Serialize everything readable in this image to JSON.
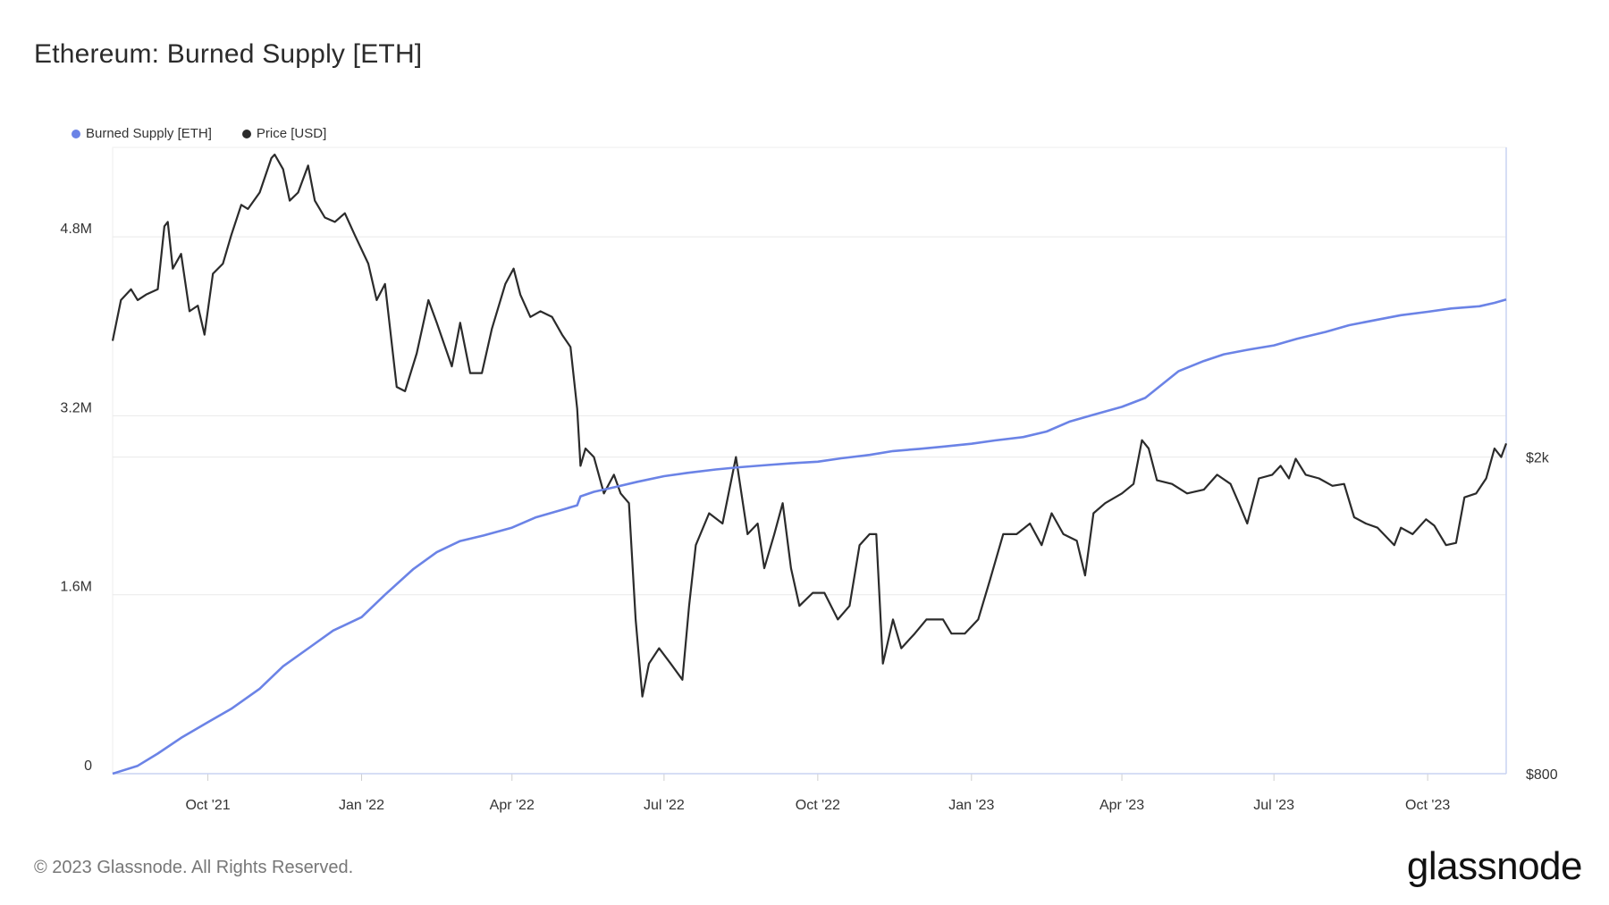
{
  "header": {
    "title": "Ethereum: Burned Supply [ETH]"
  },
  "footer": {
    "copyright": "© 2023 Glassnode. All Rights Reserved.",
    "logo": "glassnode"
  },
  "colors": {
    "burned": "#6b83e6",
    "price": "#2b2b2b",
    "grid": "#e9e9e9",
    "axis": "#c9d3f2"
  },
  "chart_data": {
    "type": "line",
    "title": "Ethereum: Burned Supply [ETH]",
    "legend_position": "top-left",
    "grid": true,
    "x_range": [
      "2021-08-05",
      "2023-11-17"
    ],
    "x_ticks": [
      {
        "date": "2021-10-01",
        "label": "Oct '21"
      },
      {
        "date": "2022-01-01",
        "label": "Jan '22"
      },
      {
        "date": "2022-04-01",
        "label": "Apr '22"
      },
      {
        "date": "2022-07-01",
        "label": "Jul '22"
      },
      {
        "date": "2022-10-01",
        "label": "Oct '22"
      },
      {
        "date": "2023-01-01",
        "label": "Jan '23"
      },
      {
        "date": "2023-04-01",
        "label": "Apr '23"
      },
      {
        "date": "2023-07-01",
        "label": "Jul '23"
      },
      {
        "date": "2023-10-01",
        "label": "Oct '23"
      }
    ],
    "y_left": {
      "min": 0,
      "max": 5600000,
      "ticks": [
        {
          "value": 0,
          "label": "0"
        },
        {
          "value": 1600000,
          "label": "1.6M"
        },
        {
          "value": 3200000,
          "label": "3.2M"
        },
        {
          "value": 4800000,
          "label": "4.8M"
        }
      ]
    },
    "y_right": {
      "scale": "log",
      "min": 800,
      "max": 4900,
      "ticks": [
        {
          "value": 800,
          "label": "$800"
        },
        {
          "value": 2000,
          "label": "$2k"
        }
      ]
    },
    "series": [
      {
        "name": "Burned Supply [ETH]",
        "axis": "left",
        "points": [
          [
            "2021-08-05",
            0
          ],
          [
            "2021-08-20",
            70000
          ],
          [
            "2021-09-01",
            180000
          ],
          [
            "2021-09-15",
            320000
          ],
          [
            "2021-10-01",
            460000
          ],
          [
            "2021-10-15",
            580000
          ],
          [
            "2021-11-01",
            760000
          ],
          [
            "2021-11-15",
            960000
          ],
          [
            "2021-12-01",
            1130000
          ],
          [
            "2021-12-15",
            1280000
          ],
          [
            "2022-01-01",
            1400000
          ],
          [
            "2022-01-15",
            1600000
          ],
          [
            "2022-02-01",
            1830000
          ],
          [
            "2022-02-15",
            1980000
          ],
          [
            "2022-03-01",
            2080000
          ],
          [
            "2022-03-15",
            2130000
          ],
          [
            "2022-04-01",
            2200000
          ],
          [
            "2022-04-15",
            2290000
          ],
          [
            "2022-05-01",
            2360000
          ],
          [
            "2022-05-10",
            2400000
          ],
          [
            "2022-05-12",
            2480000
          ],
          [
            "2022-05-20",
            2520000
          ],
          [
            "2022-06-01",
            2560000
          ],
          [
            "2022-06-15",
            2610000
          ],
          [
            "2022-07-01",
            2660000
          ],
          [
            "2022-07-15",
            2690000
          ],
          [
            "2022-08-01",
            2720000
          ],
          [
            "2022-08-15",
            2740000
          ],
          [
            "2022-09-01",
            2760000
          ],
          [
            "2022-09-15",
            2775000
          ],
          [
            "2022-10-01",
            2790000
          ],
          [
            "2022-10-15",
            2820000
          ],
          [
            "2022-11-01",
            2850000
          ],
          [
            "2022-11-15",
            2885000
          ],
          [
            "2022-12-01",
            2905000
          ],
          [
            "2022-12-15",
            2925000
          ],
          [
            "2023-01-01",
            2950000
          ],
          [
            "2023-01-15",
            2980000
          ],
          [
            "2023-02-01",
            3010000
          ],
          [
            "2023-02-15",
            3060000
          ],
          [
            "2023-03-01",
            3150000
          ],
          [
            "2023-03-15",
            3210000
          ],
          [
            "2023-04-01",
            3280000
          ],
          [
            "2023-04-15",
            3360000
          ],
          [
            "2023-04-25",
            3480000
          ],
          [
            "2023-05-05",
            3600000
          ],
          [
            "2023-05-20",
            3690000
          ],
          [
            "2023-06-01",
            3750000
          ],
          [
            "2023-06-15",
            3790000
          ],
          [
            "2023-07-01",
            3830000
          ],
          [
            "2023-07-15",
            3890000
          ],
          [
            "2023-08-01",
            3950000
          ],
          [
            "2023-08-15",
            4010000
          ],
          [
            "2023-09-01",
            4060000
          ],
          [
            "2023-09-15",
            4100000
          ],
          [
            "2023-10-01",
            4130000
          ],
          [
            "2023-10-15",
            4160000
          ],
          [
            "2023-11-01",
            4180000
          ],
          [
            "2023-11-10",
            4210000
          ],
          [
            "2023-11-17",
            4240000
          ]
        ]
      },
      {
        "name": "Price [USD]",
        "axis": "right",
        "points": [
          [
            "2021-08-05",
            2800
          ],
          [
            "2021-08-10",
            3150
          ],
          [
            "2021-08-16",
            3250
          ],
          [
            "2021-08-20",
            3150
          ],
          [
            "2021-08-25",
            3200
          ],
          [
            "2021-09-01",
            3250
          ],
          [
            "2021-09-05",
            3900
          ],
          [
            "2021-09-07",
            3950
          ],
          [
            "2021-09-10",
            3450
          ],
          [
            "2021-09-15",
            3600
          ],
          [
            "2021-09-20",
            3050
          ],
          [
            "2021-09-25",
            3100
          ],
          [
            "2021-09-29",
            2850
          ],
          [
            "2021-10-04",
            3400
          ],
          [
            "2021-10-10",
            3500
          ],
          [
            "2021-10-15",
            3800
          ],
          [
            "2021-10-21",
            4150
          ],
          [
            "2021-10-25",
            4100
          ],
          [
            "2021-11-01",
            4300
          ],
          [
            "2021-11-08",
            4750
          ],
          [
            "2021-11-10",
            4800
          ],
          [
            "2021-11-15",
            4600
          ],
          [
            "2021-11-19",
            4200
          ],
          [
            "2021-11-24",
            4300
          ],
          [
            "2021-11-30",
            4650
          ],
          [
            "2021-12-04",
            4200
          ],
          [
            "2021-12-10",
            4000
          ],
          [
            "2021-12-16",
            3950
          ],
          [
            "2021-12-22",
            4050
          ],
          [
            "2021-12-28",
            3800
          ],
          [
            "2022-01-05",
            3500
          ],
          [
            "2022-01-10",
            3150
          ],
          [
            "2022-01-15",
            3300
          ],
          [
            "2022-01-22",
            2450
          ],
          [
            "2022-01-27",
            2420
          ],
          [
            "2022-02-03",
            2700
          ],
          [
            "2022-02-10",
            3150
          ],
          [
            "2022-02-15",
            2950
          ],
          [
            "2022-02-24",
            2600
          ],
          [
            "2022-03-01",
            2950
          ],
          [
            "2022-03-07",
            2550
          ],
          [
            "2022-03-14",
            2550
          ],
          [
            "2022-03-20",
            2900
          ],
          [
            "2022-03-28",
            3300
          ],
          [
            "2022-04-02",
            3450
          ],
          [
            "2022-04-06",
            3200
          ],
          [
            "2022-04-12",
            3000
          ],
          [
            "2022-04-18",
            3050
          ],
          [
            "2022-04-25",
            3000
          ],
          [
            "2022-05-01",
            2850
          ],
          [
            "2022-05-06",
            2750
          ],
          [
            "2022-05-10",
            2300
          ],
          [
            "2022-05-12",
            1950
          ],
          [
            "2022-05-15",
            2050
          ],
          [
            "2022-05-20",
            2000
          ],
          [
            "2022-05-26",
            1800
          ],
          [
            "2022-06-01",
            1900
          ],
          [
            "2022-06-05",
            1800
          ],
          [
            "2022-06-10",
            1750
          ],
          [
            "2022-06-14",
            1250
          ],
          [
            "2022-06-18",
            1000
          ],
          [
            "2022-06-22",
            1100
          ],
          [
            "2022-06-28",
            1150
          ],
          [
            "2022-07-05",
            1100
          ],
          [
            "2022-07-12",
            1050
          ],
          [
            "2022-07-16",
            1300
          ],
          [
            "2022-07-20",
            1550
          ],
          [
            "2022-07-28",
            1700
          ],
          [
            "2022-08-05",
            1650
          ],
          [
            "2022-08-13",
            2000
          ],
          [
            "2022-08-20",
            1600
          ],
          [
            "2022-08-26",
            1650
          ],
          [
            "2022-08-30",
            1450
          ],
          [
            "2022-09-05",
            1600
          ],
          [
            "2022-09-10",
            1750
          ],
          [
            "2022-09-15",
            1450
          ],
          [
            "2022-09-20",
            1300
          ],
          [
            "2022-09-28",
            1350
          ],
          [
            "2022-10-05",
            1350
          ],
          [
            "2022-10-13",
            1250
          ],
          [
            "2022-10-20",
            1300
          ],
          [
            "2022-10-26",
            1550
          ],
          [
            "2022-11-01",
            1600
          ],
          [
            "2022-11-05",
            1600
          ],
          [
            "2022-11-09",
            1100
          ],
          [
            "2022-11-15",
            1250
          ],
          [
            "2022-11-20",
            1150
          ],
          [
            "2022-11-28",
            1200
          ],
          [
            "2022-12-05",
            1250
          ],
          [
            "2022-12-15",
            1250
          ],
          [
            "2022-12-20",
            1200
          ],
          [
            "2022-12-28",
            1200
          ],
          [
            "2023-01-05",
            1250
          ],
          [
            "2023-01-12",
            1400
          ],
          [
            "2023-01-20",
            1600
          ],
          [
            "2023-01-28",
            1600
          ],
          [
            "2023-02-05",
            1650
          ],
          [
            "2023-02-12",
            1550
          ],
          [
            "2023-02-18",
            1700
          ],
          [
            "2023-02-25",
            1600
          ],
          [
            "2023-03-05",
            1570
          ],
          [
            "2023-03-10",
            1420
          ],
          [
            "2023-03-15",
            1700
          ],
          [
            "2023-03-22",
            1750
          ],
          [
            "2023-04-01",
            1800
          ],
          [
            "2023-04-08",
            1850
          ],
          [
            "2023-04-13",
            2100
          ],
          [
            "2023-04-17",
            2050
          ],
          [
            "2023-04-22",
            1870
          ],
          [
            "2023-05-01",
            1850
          ],
          [
            "2023-05-10",
            1800
          ],
          [
            "2023-05-20",
            1820
          ],
          [
            "2023-05-28",
            1900
          ],
          [
            "2023-06-05",
            1850
          ],
          [
            "2023-06-10",
            1750
          ],
          [
            "2023-06-15",
            1650
          ],
          [
            "2023-06-22",
            1880
          ],
          [
            "2023-06-30",
            1900
          ],
          [
            "2023-07-05",
            1950
          ],
          [
            "2023-07-10",
            1880
          ],
          [
            "2023-07-14",
            1990
          ],
          [
            "2023-07-20",
            1900
          ],
          [
            "2023-07-28",
            1880
          ],
          [
            "2023-08-05",
            1840
          ],
          [
            "2023-08-12",
            1850
          ],
          [
            "2023-08-18",
            1680
          ],
          [
            "2023-08-25",
            1650
          ],
          [
            "2023-09-01",
            1630
          ],
          [
            "2023-09-11",
            1550
          ],
          [
            "2023-09-15",
            1630
          ],
          [
            "2023-09-22",
            1600
          ],
          [
            "2023-09-30",
            1670
          ],
          [
            "2023-10-05",
            1640
          ],
          [
            "2023-10-12",
            1550
          ],
          [
            "2023-10-18",
            1560
          ],
          [
            "2023-10-23",
            1780
          ],
          [
            "2023-10-30",
            1800
          ],
          [
            "2023-11-05",
            1880
          ],
          [
            "2023-11-10",
            2050
          ],
          [
            "2023-11-14",
            2000
          ],
          [
            "2023-11-17",
            2080
          ]
        ]
      }
    ]
  }
}
